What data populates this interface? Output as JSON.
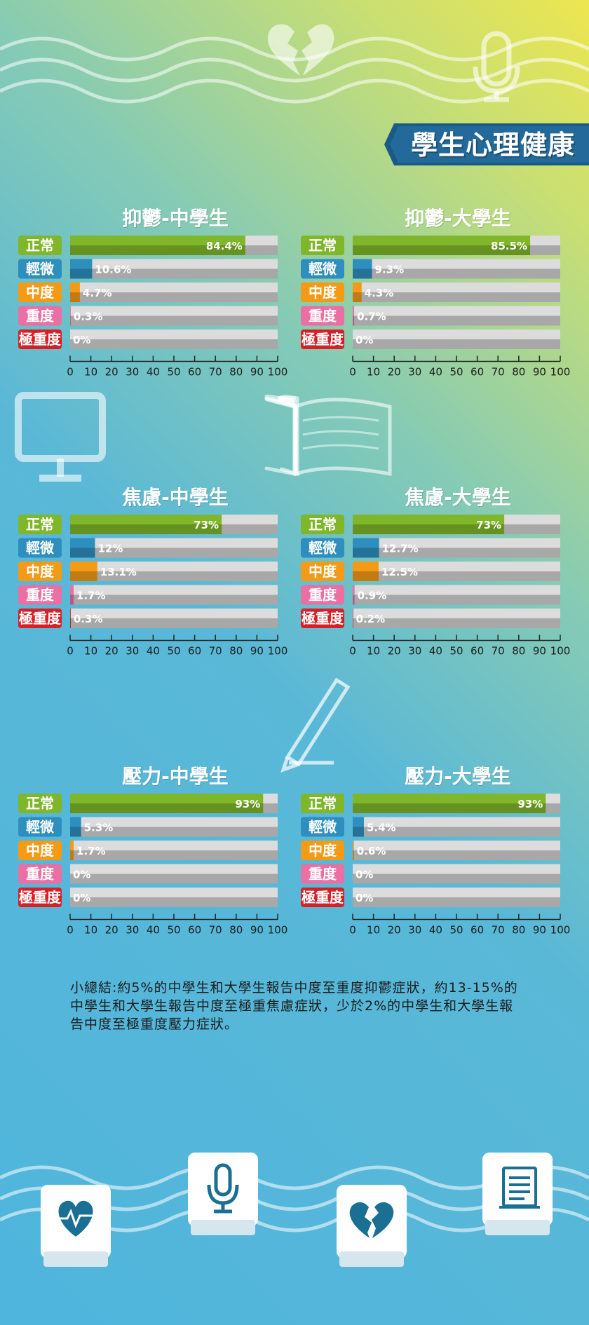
{
  "page_title": "學生心理健康",
  "legend_categories": [
    "正常",
    "輕微",
    "中度",
    "重度",
    "極重度"
  ],
  "colors": {
    "normal": "#7fb62a",
    "mild": "#2e8fbf",
    "moderate": "#f39a16",
    "severe": "#ea6fa3",
    "extreme": "#d91f26",
    "track": "#a8a8a8",
    "banner": "#1a5a86"
  },
  "icons": [
    "broken-heart-icon",
    "microphone-icon",
    "monitor-icon",
    "open-book-icon",
    "pencil-icon",
    "heartbeat-icon",
    "scroll-icon"
  ],
  "chart_data": [
    {
      "type": "bar",
      "title": "抑鬱-中學生",
      "categories": [
        "正常",
        "輕微",
        "中度",
        "重度",
        "極重度"
      ],
      "values": [
        84.4,
        10.6,
        4.7,
        0.3,
        0
      ],
      "labels": [
        "84.4%",
        "10.6%",
        "4.7%",
        "0.3%",
        "0%"
      ],
      "xlim": [
        0,
        100
      ],
      "xticks": [
        0,
        10,
        20,
        30,
        40,
        50,
        60,
        70,
        80,
        90,
        100
      ]
    },
    {
      "type": "bar",
      "title": "抑鬱-大學生",
      "categories": [
        "正常",
        "輕微",
        "中度",
        "重度",
        "極重度"
      ],
      "values": [
        85.5,
        9.3,
        4.3,
        0.7,
        0
      ],
      "labels": [
        "85.5%",
        "9.3%",
        "4.3%",
        "0.7%",
        "0%"
      ],
      "xlim": [
        0,
        100
      ],
      "xticks": [
        0,
        10,
        20,
        30,
        40,
        50,
        60,
        70,
        80,
        90,
        100
      ]
    },
    {
      "type": "bar",
      "title": "焦慮-中學生",
      "categories": [
        "正常",
        "輕微",
        "中度",
        "重度",
        "極重度"
      ],
      "values": [
        73,
        12,
        13.1,
        1.7,
        0.3
      ],
      "labels": [
        "73%",
        "12%",
        "13.1%",
        "1.7%",
        "0.3%"
      ],
      "xlim": [
        0,
        100
      ],
      "xticks": [
        0,
        10,
        20,
        30,
        40,
        50,
        60,
        70,
        80,
        90,
        100
      ]
    },
    {
      "type": "bar",
      "title": "焦慮-大學生",
      "categories": [
        "正常",
        "輕微",
        "中度",
        "重度",
        "極重度"
      ],
      "values": [
        73,
        12.7,
        12.5,
        0.9,
        0.2
      ],
      "labels": [
        "73%",
        "12.7%",
        "12.5%",
        "0.9%",
        "0.2%"
      ],
      "xlim": [
        0,
        100
      ],
      "xticks": [
        0,
        10,
        20,
        30,
        40,
        50,
        60,
        70,
        80,
        90,
        100
      ]
    },
    {
      "type": "bar",
      "title": "壓力-中學生",
      "categories": [
        "正常",
        "輕微",
        "中度",
        "重度",
        "極重度"
      ],
      "values": [
        93,
        5.3,
        1.7,
        0,
        0
      ],
      "labels": [
        "93%",
        "5.3%",
        "1.7%",
        "0%",
        "0%"
      ],
      "xlim": [
        0,
        100
      ],
      "xticks": [
        0,
        10,
        20,
        30,
        40,
        50,
        60,
        70,
        80,
        90,
        100
      ]
    },
    {
      "type": "bar",
      "title": "壓力-大學生",
      "categories": [
        "正常",
        "輕微",
        "中度",
        "重度",
        "極重度"
      ],
      "values": [
        93,
        5.4,
        0.6,
        0,
        0
      ],
      "labels": [
        "93%",
        "5.4%",
        "0.6%",
        "0%",
        "0%"
      ],
      "xlim": [
        0,
        100
      ],
      "xticks": [
        0,
        10,
        20,
        30,
        40,
        50,
        60,
        70,
        80,
        90,
        100
      ]
    }
  ],
  "summary": "小總結:約5%的中學生和大學生報告中度至重度抑鬱症狀，約13-15%的中學生和大學生報告中度至極重焦慮症狀，少於2%的中學生和大學生報告中度至極重度壓力症狀。"
}
